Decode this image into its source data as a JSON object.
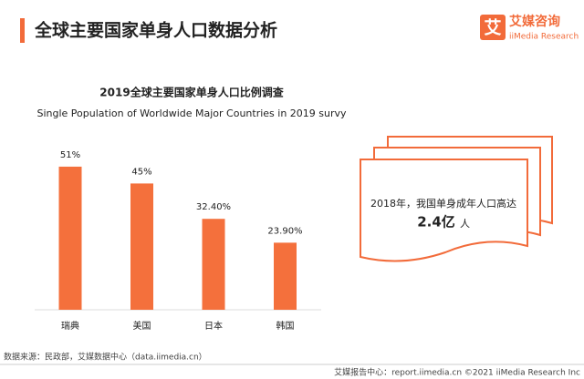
{
  "header": {
    "title": "全球主要国家单身人口数据分析",
    "logo_icon": "艾",
    "logo_name": "艾媒咨询",
    "logo_sub": "iiMedia Research"
  },
  "chart_data": {
    "type": "bar",
    "title": "2019全球主要国家单身人口比例调查",
    "subtitle": "Single Population of Worldwide Major Countries in 2019 survy",
    "categories": [
      "瑞典",
      "美国",
      "日本",
      "韩国"
    ],
    "values": [
      51,
      45,
      32.4,
      23.9
    ],
    "value_labels": [
      "51%",
      "45%",
      "32.40%",
      "23.90%"
    ],
    "color": "#f4703c"
  },
  "callout": {
    "line1": "2018年，我国单身成年人口高达",
    "big": "2.4亿",
    "unit": "人"
  },
  "footer": {
    "source": "数据来源：民政部，艾媒数据中心（data.iimedia.cn）",
    "credit": "艾媒报告中心：report.iimedia.cn ©2021 iiMedia Research Inc"
  }
}
